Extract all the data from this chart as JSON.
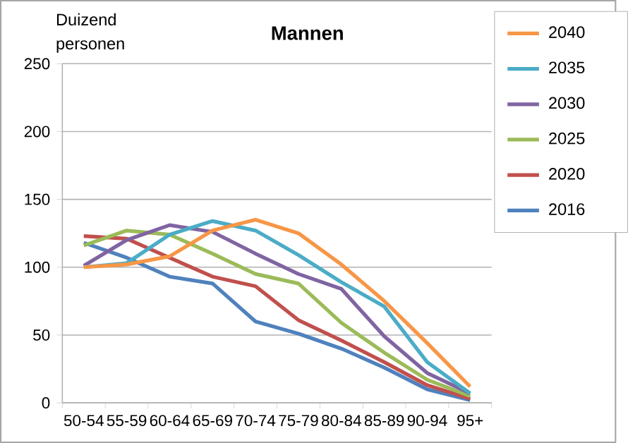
{
  "chart_data": {
    "type": "line",
    "title": "Mannen",
    "ylabel": "Duizend personen",
    "categories": [
      "50-54",
      "55-59",
      "60-64",
      "65-69",
      "70-74",
      "75-79",
      "80-84",
      "85-89",
      "90-94",
      "95+"
    ],
    "series": [
      {
        "name": "2016",
        "color": "#4f81bd",
        "values": [
          118,
          107,
          93,
          88,
          60,
          51,
          40,
          26,
          10,
          2
        ]
      },
      {
        "name": "2020",
        "color": "#c0504d",
        "values": [
          123,
          121,
          107,
          93,
          86,
          61,
          46,
          30,
          13,
          3
        ]
      },
      {
        "name": "2025",
        "color": "#9bbb59",
        "values": [
          116,
          127,
          124,
          110,
          95,
          88,
          59,
          37,
          17,
          5
        ]
      },
      {
        "name": "2030",
        "color": "#8064a2",
        "values": [
          101,
          120,
          131,
          126,
          110,
          95,
          84,
          49,
          22,
          7
        ]
      },
      {
        "name": "2035",
        "color": "#4bacc6",
        "values": [
          100,
          103,
          124,
          134,
          127,
          109,
          89,
          71,
          30,
          7
        ]
      },
      {
        "name": "2040",
        "color": "#f79646",
        "values": [
          100,
          102,
          108,
          127,
          135,
          125,
          102,
          75,
          44,
          12
        ]
      }
    ],
    "ylim": [
      0,
      250
    ],
    "yticks": [
      0,
      50,
      100,
      150,
      200,
      250
    ],
    "grid": "y",
    "legend": "right",
    "marker": "none",
    "line_style": "solid"
  }
}
